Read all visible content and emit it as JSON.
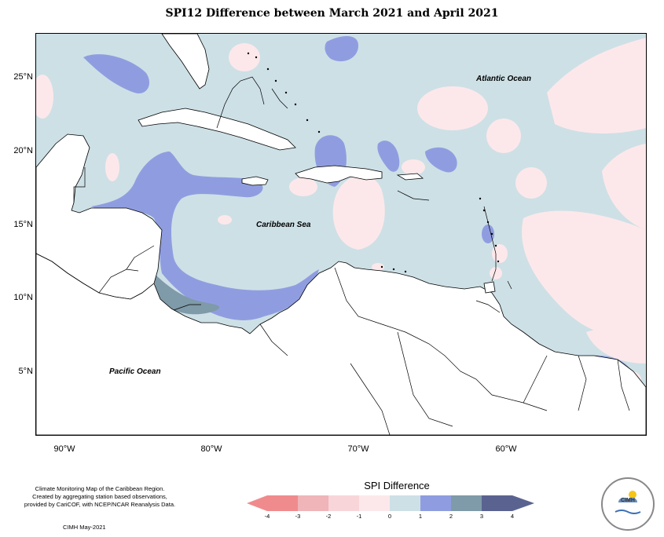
{
  "title": "SPI12 Difference between March 2021 and April 2021",
  "map": {
    "labels": {
      "atlantic": "Atlantic Ocean",
      "caribbean": "Caribbean Sea",
      "pacific": "Pacific Ocean"
    },
    "lat_ticks": [
      "25°N",
      "20°N",
      "15°N",
      "10°N",
      "5°N"
    ],
    "lon_ticks": [
      "90°W",
      "80°W",
      "70°W",
      "60°W"
    ],
    "colors": {
      "background_class": "#cde0e6",
      "wet_1_2": "#8f9de0",
      "wet_2_3": "#7f9aa8",
      "dry_0_1": "#fce8ea",
      "land": "#ffffff"
    }
  },
  "legend": {
    "title": "SPI Difference",
    "ticks": [
      "-4",
      "-3",
      "-2",
      "-1",
      "0",
      "1",
      "2",
      "3",
      "4"
    ],
    "colors": [
      "#f08b8d",
      "#efb5b9",
      "#f8d5d9",
      "#fce8ea",
      "#cde0e6",
      "#8f9de0",
      "#7f9aa8",
      "#5a6390"
    ]
  },
  "footer": {
    "credits": [
      "Climate Monitoring Map of the Caribbean Region.",
      "Created by aggregating station based observations,",
      "provided by CariCOF, with NCEP/NCAR Reanalysis Data."
    ],
    "date": "CIMH May-2021",
    "logo_text": "CIMH"
  }
}
